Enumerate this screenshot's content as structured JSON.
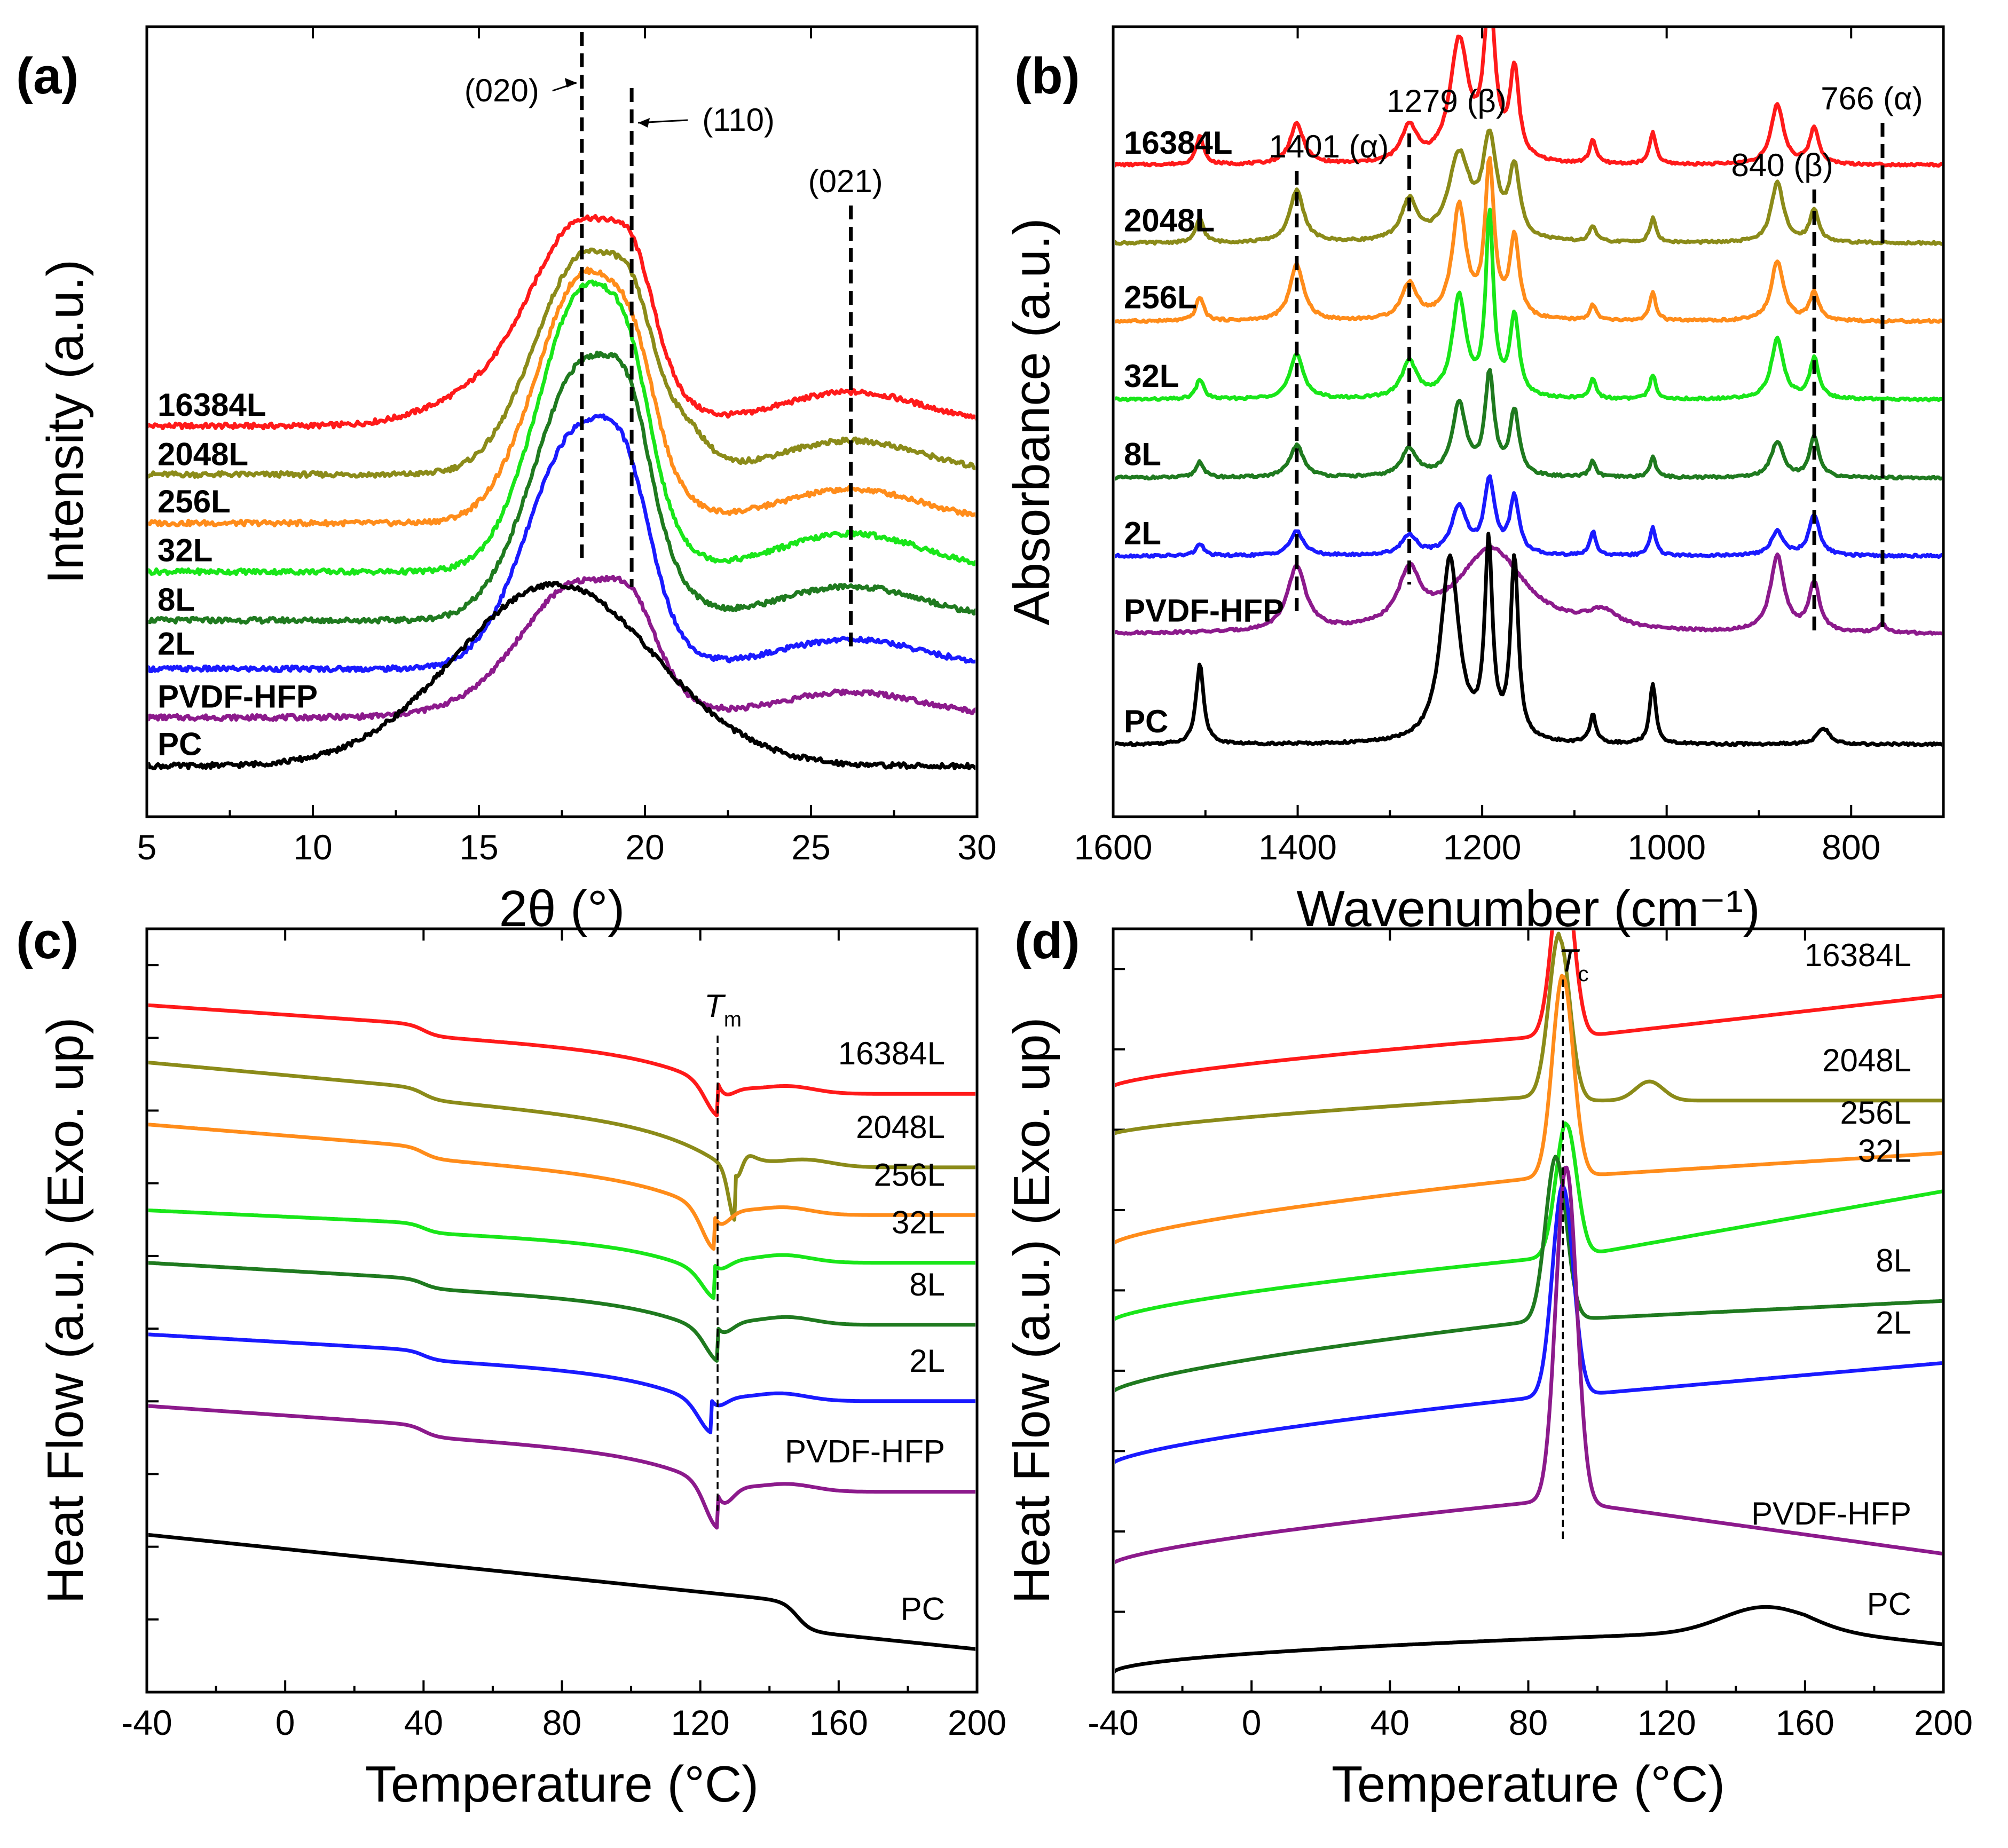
{
  "chart_data": [
    {
      "id": "a",
      "type": "line",
      "panel_label": "(a)",
      "xlabel": "2θ (°)",
      "ylabel": "Intensity (a.u.)",
      "xlim": [
        5,
        30
      ],
      "xticks": [
        "5",
        "10",
        "15",
        "20",
        "25",
        "30"
      ],
      "yticks": [],
      "reverse_x": false,
      "label_weight": "bold",
      "annotations": [
        {
          "text": "(020)",
          "x": 18.1
        },
        {
          "text": "(110)",
          "x": 19.6
        },
        {
          "text": "(021)",
          "x": 26.2
        }
      ],
      "series": [
        {
          "name": "16384L",
          "color": "#ff1a1a",
          "offset": 7,
          "profile": "xrd",
          "peaks": [
            [
              18.2,
              4.6,
              1.5
            ],
            [
              19.7,
              1.5,
              0.6
            ],
            [
              26.2,
              0.8,
              2.2
            ],
            [
              15.5,
              0.8,
              1.8
            ]
          ]
        },
        {
          "name": "2048L",
          "color": "#8b8b19",
          "offset": 6,
          "profile": "xrd",
          "peaks": [
            [
              18.2,
              5.2,
              1.5
            ],
            [
              19.7,
              1.4,
              0.6
            ],
            [
              21.3,
              0.6,
              0.6
            ],
            [
              26.2,
              0.8,
              2.2
            ]
          ]
        },
        {
          "name": "256L",
          "color": "#ff8c1a",
          "offset": 5,
          "profile": "xrd",
          "peaks": [
            [
              18.2,
              5.9,
              1.45
            ],
            [
              19.7,
              1.3,
              0.6
            ],
            [
              26.2,
              0.8,
              2.2
            ]
          ]
        },
        {
          "name": "32L",
          "color": "#19e619",
          "offset": 4,
          "profile": "xrd",
          "peaks": [
            [
              18.2,
              6.7,
              1.4
            ],
            [
              19.6,
              1.5,
              0.6
            ],
            [
              26.2,
              0.9,
              2.2
            ]
          ]
        },
        {
          "name": "8L",
          "color": "#1f7a1f",
          "offset": 3,
          "profile": "xrd",
          "peaks": [
            [
              18.2,
              6.1,
              1.5
            ],
            [
              19.6,
              1.6,
              0.6
            ],
            [
              26.2,
              0.8,
              2.2
            ]
          ]
        },
        {
          "name": "2L",
          "color": "#1a1aff",
          "offset": 2,
          "profile": "xrd",
          "peaks": [
            [
              18.0,
              5.6,
              1.5
            ],
            [
              19.5,
              1.8,
              0.7
            ],
            [
              26.2,
              0.7,
              2.2
            ]
          ]
        },
        {
          "name": "PVDF-HFP",
          "color": "#8c1a8c",
          "offset": 1,
          "profile": "xrd",
          "peaks": [
            [
              18.1,
              2.8,
              1.6
            ],
            [
              19.7,
              1.1,
              0.7
            ],
            [
              26.2,
              0.6,
              2.2
            ],
            [
              16.5,
              0.5,
              2.0
            ]
          ]
        },
        {
          "name": "PC",
          "color": "#000000",
          "offset": 0,
          "profile": "xrd",
          "peaks": [
            [
              17.3,
              4.3,
              3.0
            ]
          ]
        }
      ]
    },
    {
      "id": "b",
      "type": "line",
      "panel_label": "(b)",
      "xlabel": "Wavenumber (cm⁻¹)",
      "ylabel": "Absorbance (a.u.)",
      "xlim": [
        1600,
        700
      ],
      "xticks": [
        "1600",
        "1400",
        "1200",
        "1000",
        "800"
      ],
      "yticks": [],
      "reverse_x": true,
      "label_weight": "bold",
      "annotations": [
        {
          "text": "1401 (α)",
          "x": 1401
        },
        {
          "text": "1279 (β)",
          "x": 1279
        },
        {
          "text": "840 (β)",
          "x": 840
        },
        {
          "text": "766 (α)",
          "x": 766
        }
      ],
      "series": [
        {
          "name": "16384L",
          "color": "#ff1a1a",
          "offset": 7,
          "profile": "ftir",
          "peaks": [
            [
              1506,
              0.7,
              5
            ],
            [
              1401,
              1.0,
              9
            ],
            [
              1279,
              0.9,
              10
            ],
            [
              1225,
              3.0,
              12
            ],
            [
              1192,
              4.0,
              7
            ],
            [
              1165,
              2.2,
              6
            ],
            [
              1080,
              0.6,
              4
            ],
            [
              1015,
              0.8,
              4
            ],
            [
              880,
              1.5,
              8
            ],
            [
              840,
              0.9,
              6
            ]
          ]
        },
        {
          "name": "2048L",
          "color": "#8b8b19",
          "offset": 6,
          "profile": "ftir",
          "peaks": [
            [
              1506,
              0.6,
              5
            ],
            [
              1401,
              1.3,
              9
            ],
            [
              1279,
              1.0,
              10
            ],
            [
              1225,
              2.1,
              14
            ],
            [
              1192,
              2.4,
              9
            ],
            [
              1165,
              1.7,
              7
            ],
            [
              1080,
              0.4,
              4
            ],
            [
              1015,
              0.6,
              4
            ],
            [
              880,
              1.5,
              8
            ],
            [
              840,
              0.8,
              6
            ]
          ]
        },
        {
          "name": "256L",
          "color": "#ff8c1a",
          "offset": 5,
          "profile": "ftir",
          "peaks": [
            [
              1506,
              0.6,
              5
            ],
            [
              1401,
              1.4,
              9
            ],
            [
              1279,
              0.9,
              10
            ],
            [
              1225,
              2.8,
              9
            ],
            [
              1192,
              3.8,
              6
            ],
            [
              1165,
              2.0,
              6
            ],
            [
              1080,
              0.4,
              4
            ],
            [
              1015,
              0.7,
              4
            ],
            [
              880,
              1.5,
              8
            ],
            [
              840,
              0.7,
              6
            ]
          ]
        },
        {
          "name": "32L",
          "color": "#19e619",
          "offset": 4,
          "profile": "ftir",
          "peaks": [
            [
              1506,
              0.5,
              5
            ],
            [
              1401,
              1.1,
              9
            ],
            [
              1279,
              0.9,
              10
            ],
            [
              1225,
              2.5,
              9
            ],
            [
              1192,
              4.5,
              5
            ],
            [
              1165,
              2.0,
              6
            ],
            [
              1080,
              0.5,
              4
            ],
            [
              1015,
              0.6,
              4
            ],
            [
              880,
              1.5,
              8
            ],
            [
              840,
              1.0,
              6
            ]
          ]
        },
        {
          "name": "8L",
          "color": "#1f7a1f",
          "offset": 3,
          "profile": "ftir",
          "peaks": [
            [
              1506,
              0.4,
              5
            ],
            [
              1401,
              0.8,
              9
            ],
            [
              1279,
              0.7,
              10
            ],
            [
              1225,
              1.8,
              9
            ],
            [
              1192,
              2.5,
              6
            ],
            [
              1165,
              1.6,
              6
            ],
            [
              1080,
              0.4,
              4
            ],
            [
              1015,
              0.5,
              4
            ],
            [
              880,
              0.9,
              8
            ],
            [
              840,
              1.0,
              6
            ]
          ]
        },
        {
          "name": "2L",
          "color": "#1a1aff",
          "offset": 2,
          "profile": "ftir",
          "peaks": [
            [
              1506,
              0.3,
              5
            ],
            [
              1401,
              0.6,
              9
            ],
            [
              1279,
              0.5,
              10
            ],
            [
              1225,
              1.2,
              10
            ],
            [
              1192,
              1.8,
              7
            ],
            [
              1165,
              1.4,
              6
            ],
            [
              1080,
              0.6,
              4
            ],
            [
              1015,
              0.7,
              4
            ],
            [
              880,
              0.6,
              8
            ],
            [
              840,
              1.0,
              7
            ]
          ]
        },
        {
          "name": "PVDF-HFP",
          "color": "#8c1a8c",
          "offset": 1,
          "profile": "ftir",
          "peaks": [
            [
              1401,
              1.6,
              12
            ],
            [
              1279,
              1.3,
              14
            ],
            [
              1190,
              2.1,
              45
            ],
            [
              1070,
              0.4,
              20
            ],
            [
              880,
              1.9,
              9
            ],
            [
              840,
              1.2,
              7
            ],
            [
              766,
              0.2,
              6
            ]
          ]
        },
        {
          "name": "PC",
          "color": "#000000",
          "offset": 0,
          "profile": "ftir",
          "peaks": [
            [
              1506,
              2.0,
              5
            ],
            [
              1235,
              4.6,
              12
            ],
            [
              1193,
              4.8,
              5
            ],
            [
              1165,
              4.5,
              5
            ],
            [
              1080,
              0.7,
              4
            ],
            [
              1015,
              1.5,
              4
            ],
            [
              830,
              0.4,
              8
            ]
          ]
        }
      ]
    },
    {
      "id": "c",
      "type": "line",
      "panel_label": "(c)",
      "xlabel": "Temperature (°C)",
      "ylabel": "Heat Flow (a.u.)   (Exo. up)",
      "xlim": [
        -40,
        200
      ],
      "xticks": [
        "-40",
        "0",
        "40",
        "80",
        "120",
        "160",
        "200"
      ],
      "yticks": [
        "",
        "",
        "",
        "",
        "",
        "",
        "",
        "",
        "",
        ""
      ],
      "reverse_x": false,
      "label_weight": "normal",
      "annotations": [
        {
          "text": "T",
          "sub": "m",
          "x": 125
        }
      ],
      "series": [
        {
          "name": "16384L",
          "color": "#ff1a1a",
          "profile": "dsc_melt",
          "y0": 7.2,
          "slope": 0.6,
          "dip": [
            125,
            0.7,
            6
          ],
          "glass": 0.12,
          "level_after": 6.27
        },
        {
          "name": "2048L",
          "color": "#8b8b19",
          "profile": "dsc_melt",
          "y0": 6.6,
          "slope": 0.8,
          "dip": [
            130,
            1.2,
            3
          ],
          "glass": 0.12,
          "level_after": 5.5
        },
        {
          "name": "256L",
          "color": "#ff8c1a",
          "profile": "dsc_melt",
          "y0": 5.95,
          "slope": 0.7,
          "dip": [
            124,
            0.9,
            6
          ],
          "glass": 0.12,
          "level_after": 5.0
        },
        {
          "name": "32L",
          "color": "#19e619",
          "profile": "dsc_melt",
          "y0": 5.05,
          "slope": 0.4,
          "dip": [
            124,
            0.5,
            6
          ],
          "glass": 0.1,
          "level_after": 4.5
        },
        {
          "name": "8L",
          "color": "#1f7a1f",
          "profile": "dsc_melt",
          "y0": 4.5,
          "slope": 0.5,
          "dip": [
            125,
            0.6,
            6
          ],
          "glass": 0.1,
          "level_after": 3.85
        },
        {
          "name": "2L",
          "color": "#1a1aff",
          "profile": "dsc_melt",
          "y0": 3.75,
          "slope": 0.5,
          "dip": [
            123,
            0.6,
            6
          ],
          "glass": 0.1,
          "level_after": 3.05
        },
        {
          "name": "PVDF-HFP",
          "color": "#8c1a8c",
          "profile": "dsc_melt",
          "y0": 3.0,
          "slope": 0.6,
          "dip": [
            125,
            1.0,
            6
          ],
          "glass": 0.12,
          "level_after": 2.1
        },
        {
          "name": "PC",
          "color": "#000000",
          "profile": "dsc_pc",
          "y0": 1.65,
          "slope": 0.9,
          "level_after": 0.4
        }
      ]
    },
    {
      "id": "d",
      "type": "line",
      "panel_label": "(d)",
      "xlabel": "Temperature (°C)",
      "ylabel": "Heat Flow (a.u.)   (Exo. up)",
      "xlim": [
        -40,
        200
      ],
      "xticks": [
        "-40",
        "0",
        "40",
        "80",
        "120",
        "160",
        "200"
      ],
      "yticks": [
        "",
        "",
        "",
        "",
        "",
        "",
        "",
        "",
        ""
      ],
      "reverse_x": false,
      "label_weight": "normal",
      "annotations": [
        {
          "text": "T",
          "sub": "c",
          "x": 90
        }
      ],
      "series": [
        {
          "name": "16384L",
          "color": "#ff1a1a",
          "profile": "dsc_cryst",
          "y0": 6.4,
          "y_end": 7.3,
          "peak": [
            90,
            1.9,
            3.0
          ],
          "step": 7.0
        },
        {
          "name": "2048L",
          "color": "#8b8b19",
          "profile": "dsc_cryst",
          "y0": 5.9,
          "y_end": 6.2,
          "peak": [
            89,
            1.7,
            3.0
          ],
          "step": 6.35
        },
        {
          "name": "256L",
          "color": "#ff8c1a",
          "profile": "dsc_cryst",
          "y0": 4.75,
          "y_end": 5.65,
          "peak": [
            90,
            2.1,
            3.0
          ],
          "step": 5.55
        },
        {
          "name": "32L",
          "color": "#19e619",
          "profile": "dsc_cryst",
          "y0": 3.95,
          "y_end": 5.25,
          "peak": [
            91,
            1.4,
            3.0
          ],
          "step": 4.7
        },
        {
          "name": "8L",
          "color": "#1f7a1f",
          "profile": "dsc_cryst",
          "y0": 3.2,
          "y_end": 4.1,
          "peak": [
            88,
            1.7,
            3.0
          ],
          "step": 4.05
        },
        {
          "name": "2L",
          "color": "#1a1aff",
          "profile": "dsc_cryst",
          "y0": 2.45,
          "y_end": 3.45,
          "peak": [
            90,
            2.2,
            3.0
          ],
          "step": 3.25
        },
        {
          "name": "PVDF-HFP",
          "color": "#8c1a8c",
          "profile": "dsc_cryst",
          "y0": 1.4,
          "y_end": 1.45,
          "peak": [
            91,
            3.5,
            3.0
          ],
          "step": 2.15
        },
        {
          "name": "PC",
          "color": "#000000",
          "profile": "dsc_pc_cool",
          "y0": 0.2,
          "y_end": 0.7,
          "bump": [
            148,
            0.25,
            12
          ]
        }
      ]
    }
  ]
}
